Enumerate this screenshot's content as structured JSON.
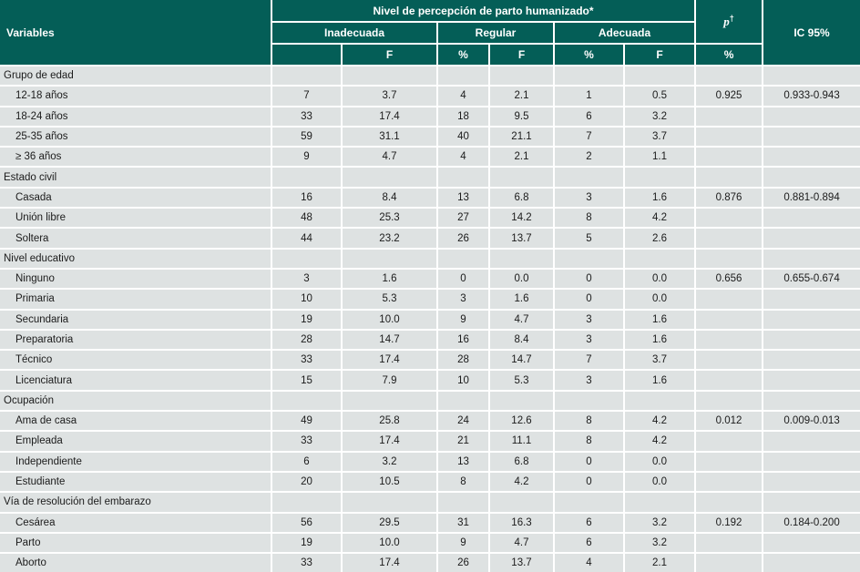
{
  "colors": {
    "header_bg": "#045E57",
    "row_bg": "#DEE2E2",
    "grid": "#FFFFFF",
    "text": "#1B1B1B",
    "header_text": "#FFFFFF"
  },
  "table": {
    "header": {
      "variables": "Variables",
      "group_title": "Nivel de percepción de parto humanizado*",
      "subgroups": [
        "Inadecuada",
        "Regular",
        "Adecuada"
      ],
      "sub_cols": [
        "",
        "F",
        "%",
        "F",
        "%",
        "F",
        "%"
      ],
      "p_label": "p",
      "p_sup": "†",
      "ic_label": "IC 95%"
    },
    "sections": [
      {
        "label": "Grupo de edad",
        "rows": [
          {
            "label": "12-18 años",
            "cells": [
              "7",
              "3.7",
              "4",
              "2.1",
              "1",
              "0.5",
              "0.925",
              "0.933-0.943"
            ]
          },
          {
            "label": "18-24 años",
            "cells": [
              "33",
              "17.4",
              "18",
              "9.5",
              "6",
              "3.2",
              "",
              ""
            ]
          },
          {
            "label": "25-35 años",
            "cells": [
              "59",
              "31.1",
              "40",
              "21.1",
              "7",
              "3.7",
              "",
              ""
            ]
          },
          {
            "label": "≥ 36 años",
            "cells": [
              "9",
              "4.7",
              "4",
              "2.1",
              "2",
              "1.1",
              "",
              ""
            ]
          }
        ]
      },
      {
        "label": "Estado civil",
        "rows": [
          {
            "label": "Casada",
            "cells": [
              "16",
              "8.4",
              "13",
              "6.8",
              "3",
              "1.6",
              "0.876",
              "0.881-0.894"
            ]
          },
          {
            "label": "Unión libre",
            "cells": [
              "48",
              "25.3",
              "27",
              "14.2",
              "8",
              "4.2",
              "",
              ""
            ]
          },
          {
            "label": "Soltera",
            "cells": [
              "44",
              "23.2",
              "26",
              "13.7",
              "5",
              "2.6",
              "",
              ""
            ]
          }
        ]
      },
      {
        "label": "Nivel educativo",
        "rows": [
          {
            "label": "Ninguno",
            "cells": [
              "3",
              "1.6",
              "0",
              "0.0",
              "0",
              "0.0",
              "0.656",
              "0.655-0.674"
            ]
          },
          {
            "label": "Primaria",
            "cells": [
              "10",
              "5.3",
              "3",
              "1.6",
              "0",
              "0.0",
              "",
              ""
            ]
          },
          {
            "label": "Secundaria",
            "cells": [
              "19",
              "10.0",
              "9",
              "4.7",
              "3",
              "1.6",
              "",
              ""
            ]
          },
          {
            "label": "Preparatoria",
            "cells": [
              "28",
              "14.7",
              "16",
              "8.4",
              "3",
              "1.6",
              "",
              ""
            ]
          },
          {
            "label": "Técnico",
            "cells": [
              "33",
              "17.4",
              "28",
              "14.7",
              "7",
              "3.7",
              "",
              ""
            ]
          },
          {
            "label": "Licenciatura",
            "cells": [
              "15",
              "7.9",
              "10",
              "5.3",
              "3",
              "1.6",
              "",
              ""
            ]
          }
        ]
      },
      {
        "label": "Ocupación",
        "rows": [
          {
            "label": "Ama de casa",
            "cells": [
              "49",
              "25.8",
              "24",
              "12.6",
              "8",
              "4.2",
              "0.012",
              "0.009-0.013"
            ]
          },
          {
            "label": "Empleada",
            "cells": [
              "33",
              "17.4",
              "21",
              "11.1",
              "8",
              "4.2",
              "",
              ""
            ]
          },
          {
            "label": "Independiente",
            "cells": [
              "6",
              "3.2",
              "13",
              "6.8",
              "0",
              "0.0",
              "",
              ""
            ]
          },
          {
            "label": "Estudiante",
            "cells": [
              "20",
              "10.5",
              "8",
              "4.2",
              "0",
              "0.0",
              "",
              ""
            ]
          }
        ]
      },
      {
        "label": "Vía de resolución del embarazo",
        "rows": [
          {
            "label": "Cesárea",
            "cells": [
              "56",
              "29.5",
              "31",
              "16.3",
              "6",
              "3.2",
              "0.192",
              "0.184-0.200"
            ]
          },
          {
            "label": "Parto",
            "cells": [
              "19",
              "10.0",
              "9",
              "4.7",
              "6",
              "3.2",
              "",
              ""
            ]
          },
          {
            "label": "Aborto",
            "cells": [
              "33",
              "17.4",
              "26",
              "13.7",
              "4",
              "2.1",
              "",
              ""
            ]
          }
        ]
      }
    ]
  }
}
